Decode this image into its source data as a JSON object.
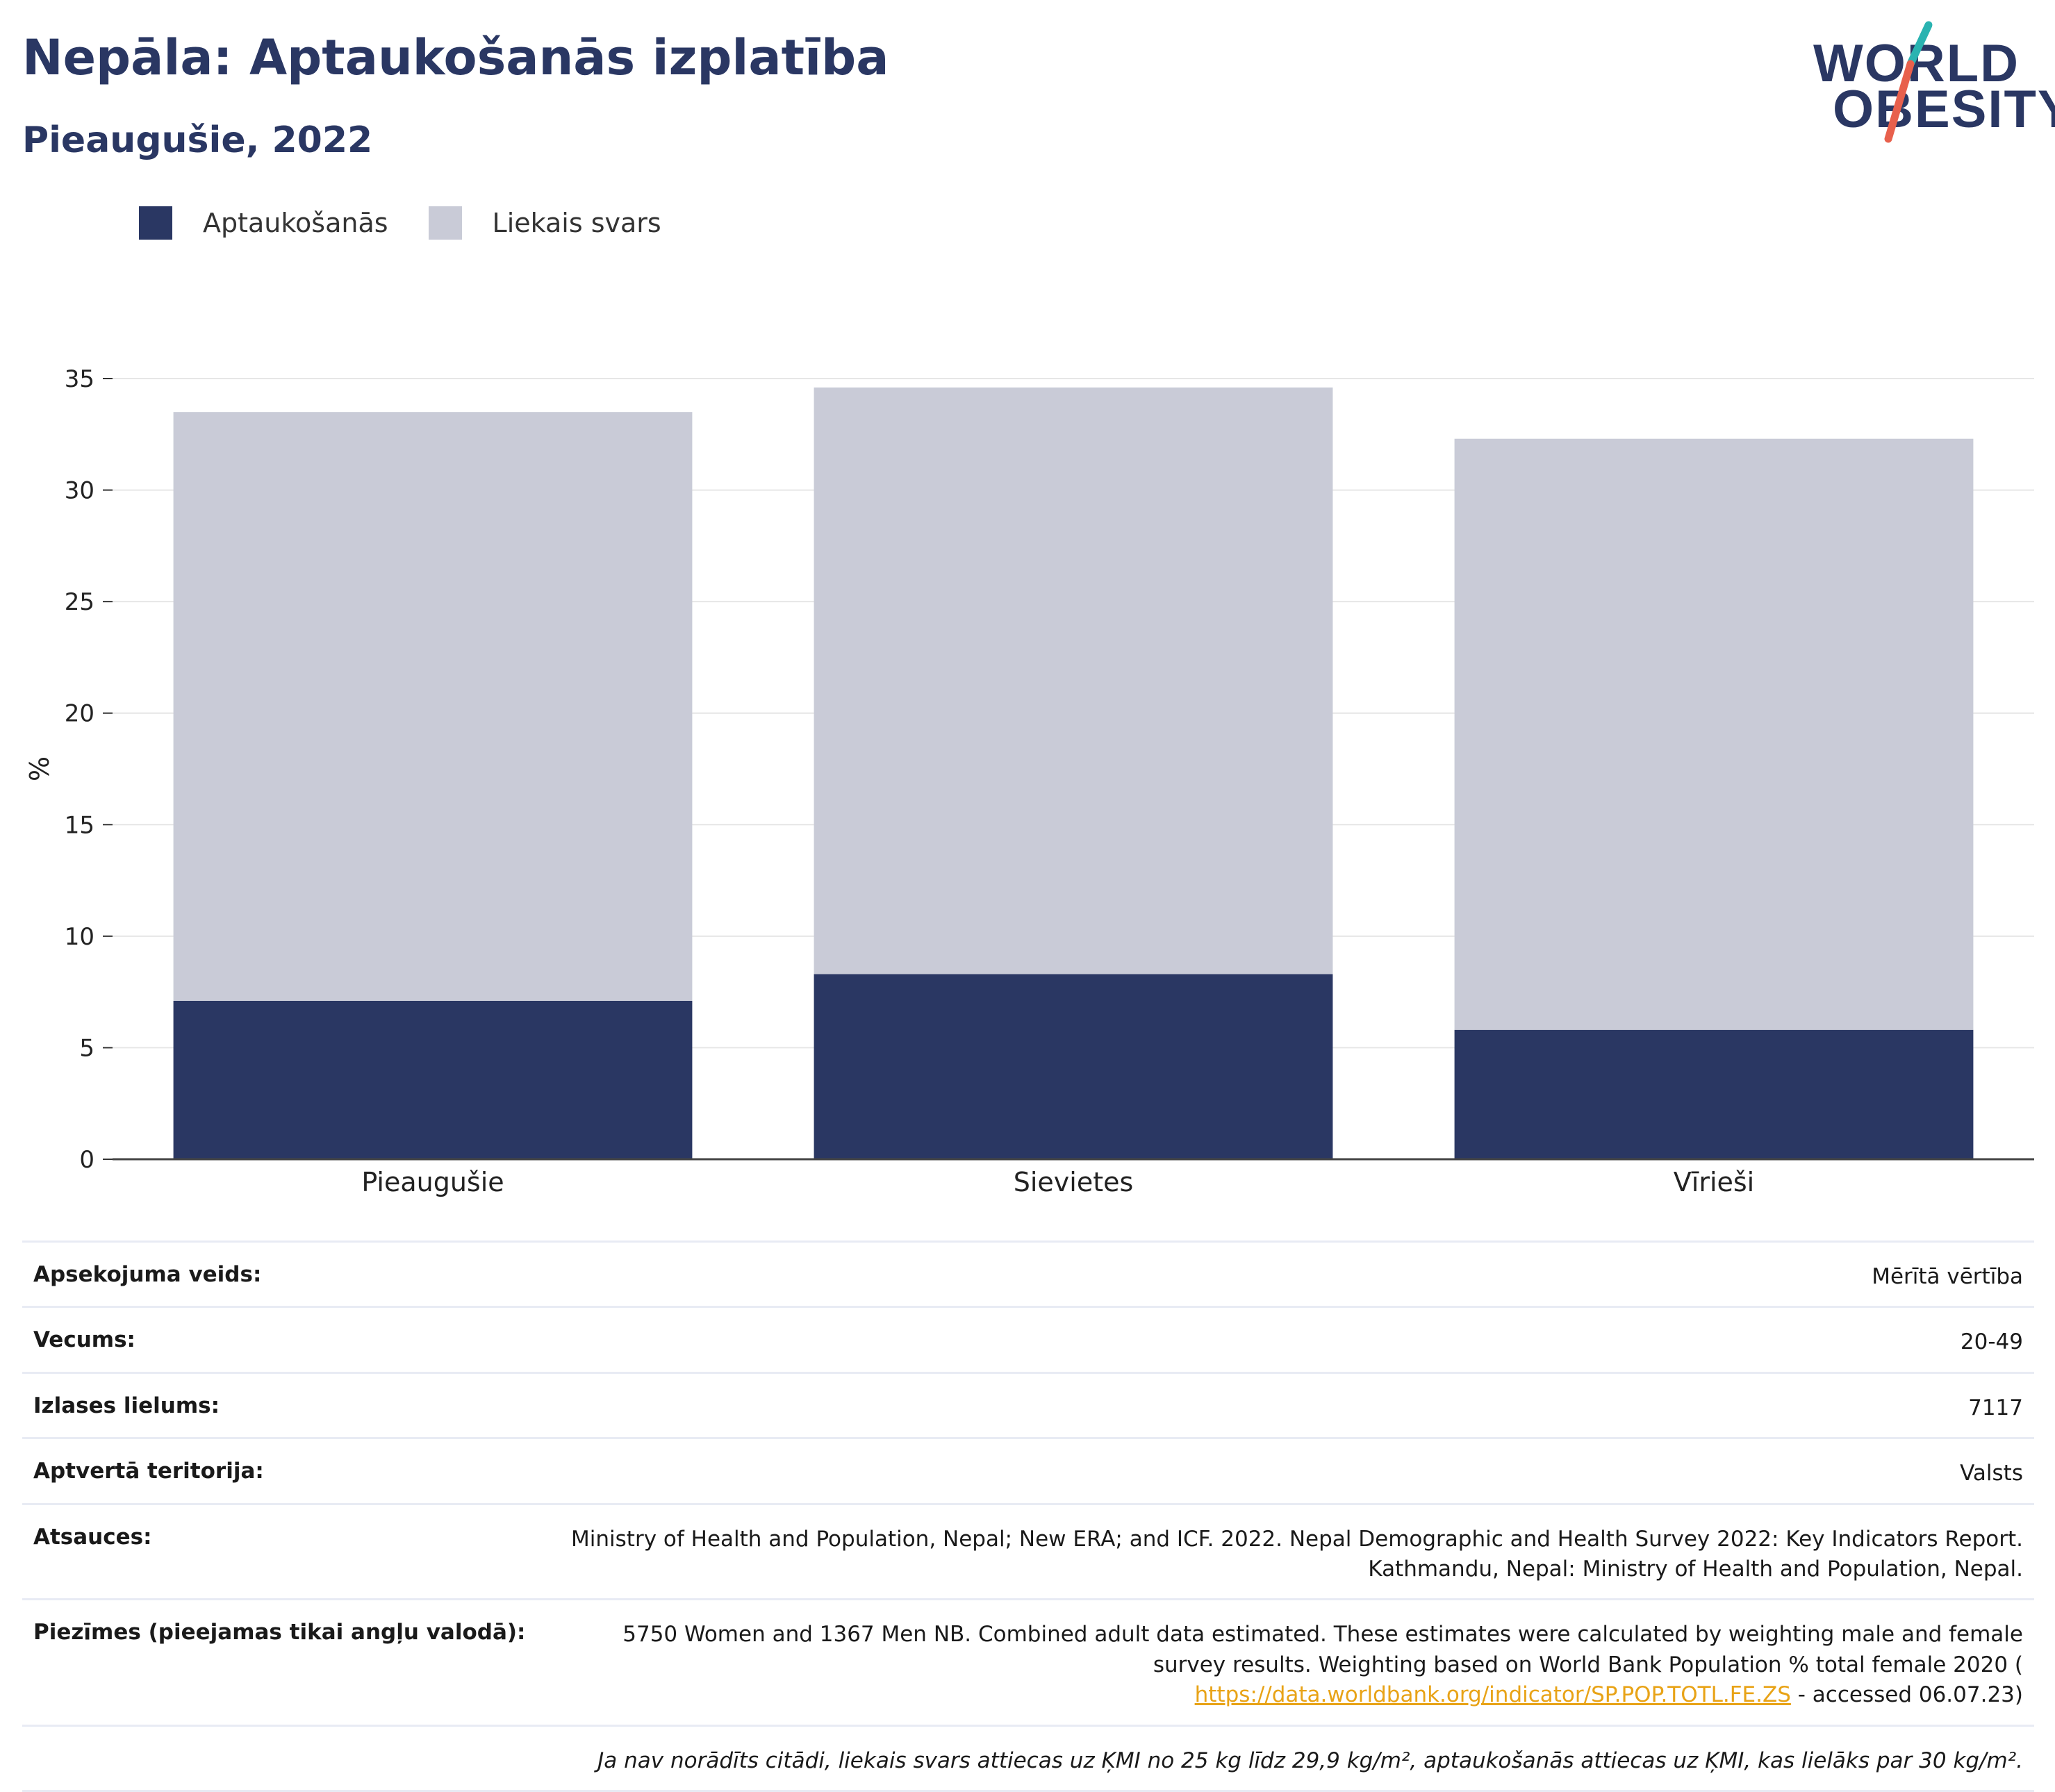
{
  "header": {
    "title": "Nepāla: Aptaukošanās izplatība",
    "subtitle": "Pieaugušie, 2022"
  },
  "logo": {
    "line1": "WORLD",
    "line2": "OBESITY",
    "colors": {
      "navy": "#2a3763",
      "teal": "#2ab3b1",
      "coral": "#e8604c"
    }
  },
  "legend": [
    {
      "label": "Aptaukošanās",
      "color": "#2a3763"
    },
    {
      "label": "Liekais svars",
      "color": "#c9cbd7"
    }
  ],
  "chart_data": {
    "type": "bar",
    "stacked": true,
    "categories": [
      "Pieaugušie",
      "Sievietes",
      "Vīrieši"
    ],
    "series": [
      {
        "name": "Aptaukošanās",
        "color": "#2a3763",
        "values": [
          7.1,
          8.3,
          5.8
        ]
      },
      {
        "name": "Liekais svars",
        "color": "#c9cbd7",
        "values": [
          26.4,
          26.3,
          26.5
        ]
      }
    ],
    "ylabel": "%",
    "ylim": [
      0,
      35
    ],
    "yticks": [
      0,
      5,
      10,
      15,
      20,
      25,
      30,
      35
    ],
    "grid": true,
    "legend_position": "top-left"
  },
  "info": {
    "rows": [
      {
        "label": "Apsekojuma veids:",
        "value": "Mērītā vērtība"
      },
      {
        "label": "Vecums:",
        "value": "20-49"
      },
      {
        "label": "Izlases lielums:",
        "value": "7117"
      },
      {
        "label": "Aptvertā teritorija:",
        "value": "Valsts"
      },
      {
        "label": "Atsauces:",
        "value_lines": [
          "Ministry of Health and Population, Nepal; New ERA; and ICF. 2022. Nepal Demographic and Health Survey 2022: Key Indicators Report.",
          "Kathmandu, Nepal: Ministry of Health and Population, Nepal."
        ]
      }
    ],
    "notes": {
      "label": "Piezīmes (pieejamas tikai angļu valodā):",
      "line1": "5750 Women and 1367 Men NB. Combined adult data estimated. These estimates were calculated by weighting male and female",
      "line2": "survey results. Weighting based on World Bank Population % total female 2020 (",
      "link": "https://data.worldbank.org/indicator/SP.POP.TOTL.FE.ZS",
      "line3_suffix": " - accessed 06.07.23)"
    },
    "footnote": "Ja nav norādīts citādi, liekais svars attiecas uz ĶMI no 25 kg līdz 29,9 kg/m², aptaukošanās attiecas uz ĶMI, kas lielāks par 30 kg/m²."
  }
}
